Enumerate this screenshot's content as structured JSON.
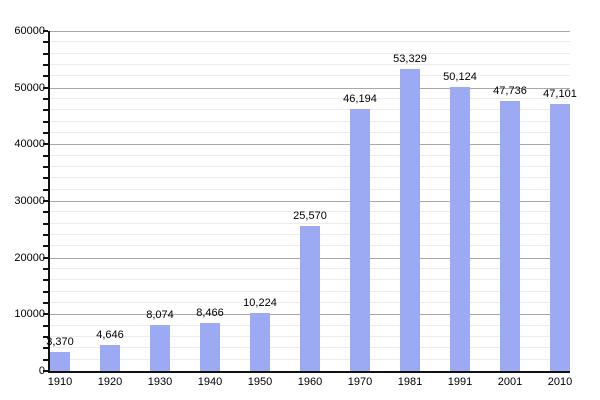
{
  "chart_data": {
    "type": "bar",
    "title": "",
    "xlabel": "",
    "ylabel": "",
    "categories": [
      "1910",
      "1920",
      "1930",
      "1940",
      "1950",
      "1960",
      "1970",
      "1981",
      "1991",
      "2001",
      "2010"
    ],
    "values": [
      3370,
      4646,
      8074,
      8466,
      10224,
      25570,
      46194,
      53329,
      50124,
      47736,
      47101
    ],
    "value_labels": [
      "3,370",
      "4,646",
      "8,074",
      "8,466",
      "10,224",
      "25,570",
      "46,194",
      "53,329",
      "50,124",
      "47,736",
      "47,101"
    ],
    "y_ticks": [
      0,
      10000,
      20000,
      30000,
      40000,
      50000,
      60000
    ],
    "y_tick_labels": [
      "0",
      "10000",
      "20000",
      "30000",
      "40000",
      "50000",
      "60000"
    ],
    "ylim": [
      0,
      60000
    ],
    "minor_tick_step": 2000,
    "grid": "major-and-minor-horizontal",
    "legend": "none",
    "colors": {
      "bar": "#9caaf3",
      "major_grid": "#a9a9a9",
      "minor_grid": "#ececec",
      "axis": "#111111",
      "text": "#000000",
      "background": "#ffffff"
    }
  }
}
